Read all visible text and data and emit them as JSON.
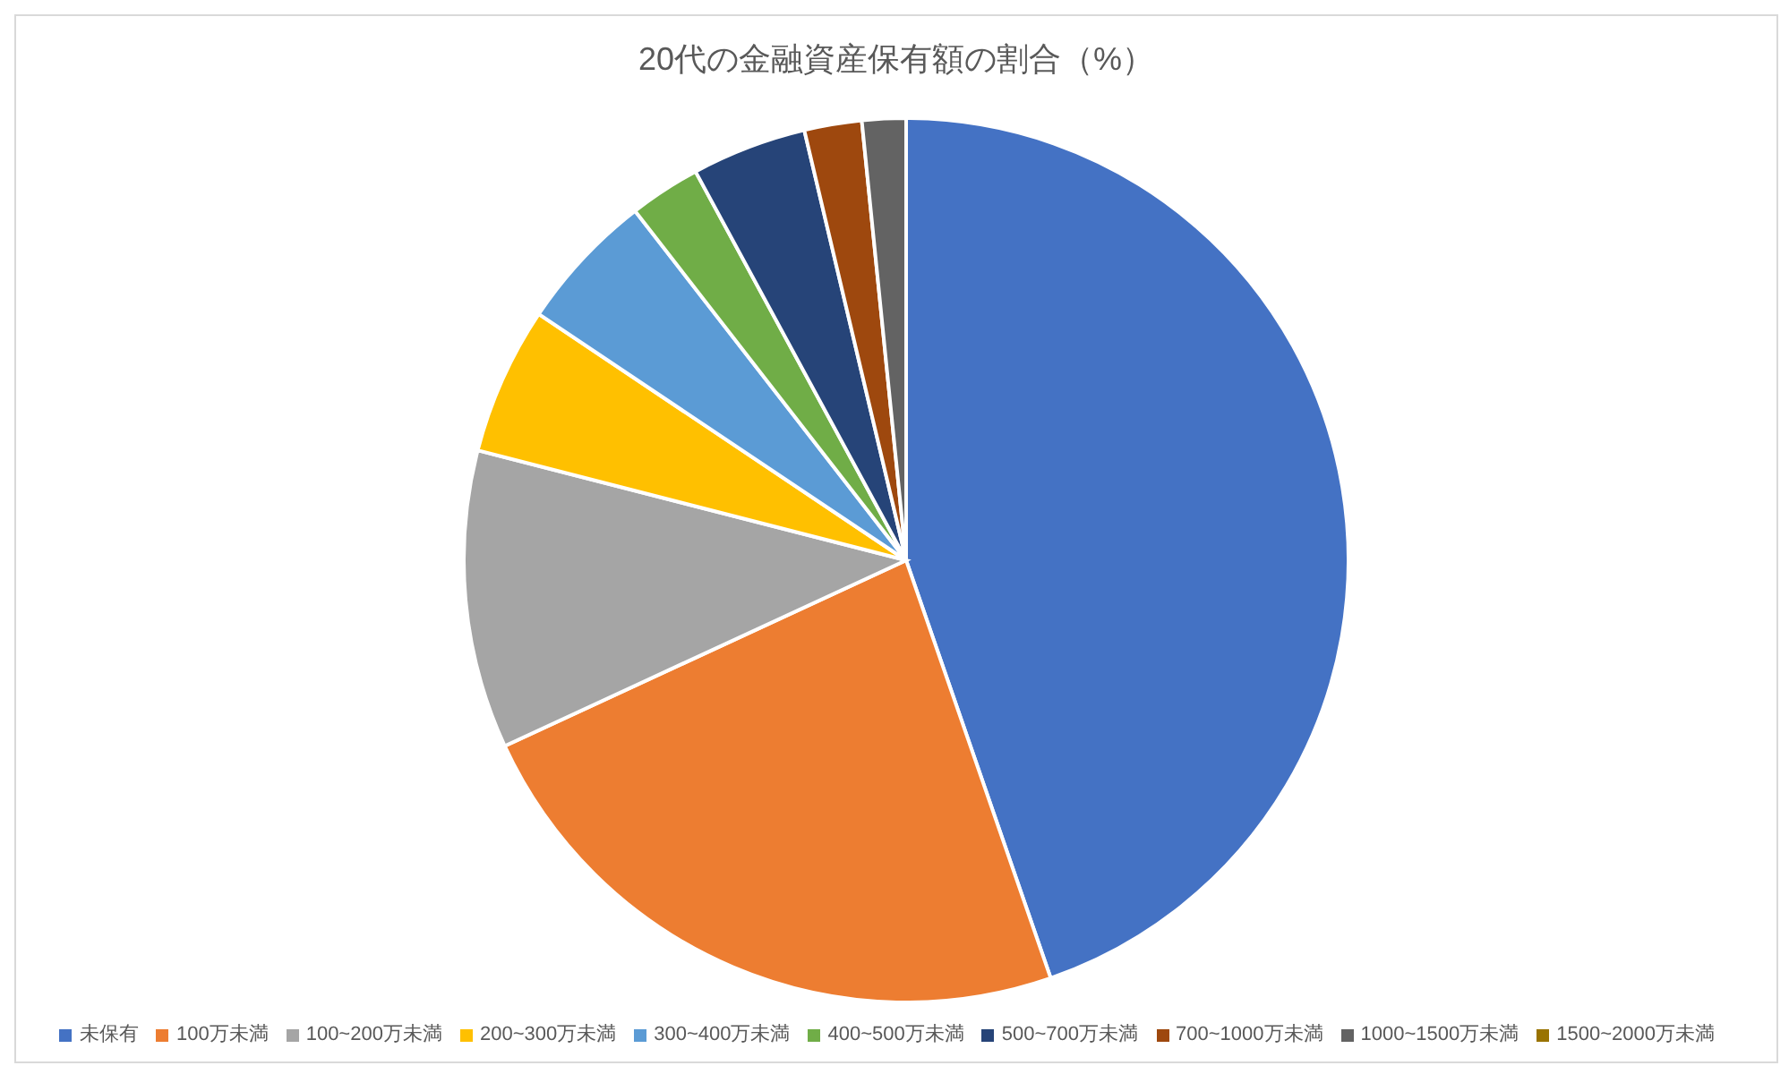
{
  "chart_data": {
    "type": "pie",
    "title": "20代の金融資産保有額の割合（%）",
    "categories": [
      "未保有",
      "100万未満",
      "100~200万未満",
      "200~300万未満",
      "300~400万未満",
      "400~500万未満",
      "500~700万未満",
      "700~1000万未満",
      "1000~1500万未満",
      "1500~2000万未満"
    ],
    "values": [
      44.7,
      23.4,
      10.9,
      5.4,
      5.1,
      2.6,
      4.2,
      2.1,
      1.6,
      0
    ],
    "colors": [
      "#4472c4",
      "#ed7d31",
      "#a5a5a5",
      "#ffc000",
      "#5b9bd5",
      "#70ad47",
      "#264478",
      "#9e480e",
      "#636363",
      "#997300"
    ],
    "legend": "bottom"
  }
}
